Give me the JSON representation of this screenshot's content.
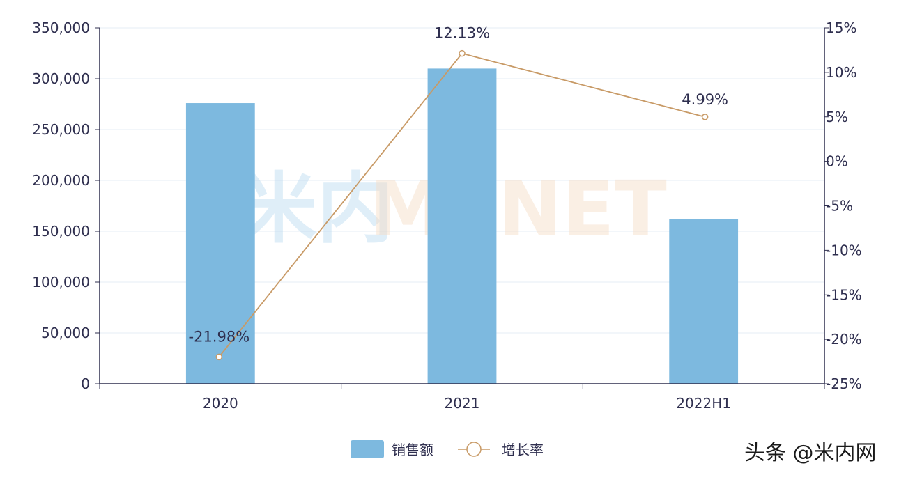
{
  "chart_data": {
    "type": "bar",
    "categories": [
      "2020",
      "2021",
      "2022H1"
    ],
    "series": [
      {
        "name": "销售额",
        "type": "bar",
        "axis": "left",
        "values": [
          276000,
          310000,
          162000
        ]
      },
      {
        "name": "增长率",
        "type": "line",
        "axis": "right",
        "values": [
          -21.98,
          12.13,
          4.99
        ]
      }
    ],
    "data_labels": [
      "-21.98%",
      "12.13%",
      "4.99%"
    ],
    "y_left": {
      "range": [
        0,
        350000
      ],
      "ticks": [
        "0",
        "50,000",
        "100,000",
        "150,000",
        "200,000",
        "250,000",
        "300,000",
        "350,000"
      ]
    },
    "y_right": {
      "range": [
        -25,
        15
      ],
      "ticks": [
        "-25%",
        "-20%",
        "-15%",
        "-10%",
        "-5%",
        "0%",
        "5%",
        "10%",
        "15%"
      ]
    },
    "grid": true,
    "legend": "bottom-center",
    "colors": {
      "bar": "#7db9df",
      "line": "#c89a66",
      "axis": "#2f2f4f",
      "grid": "#e6ecf4"
    }
  },
  "watermark": {
    "part1": "米内",
    "part2": "MENET"
  },
  "credit": "头条 @米内网"
}
